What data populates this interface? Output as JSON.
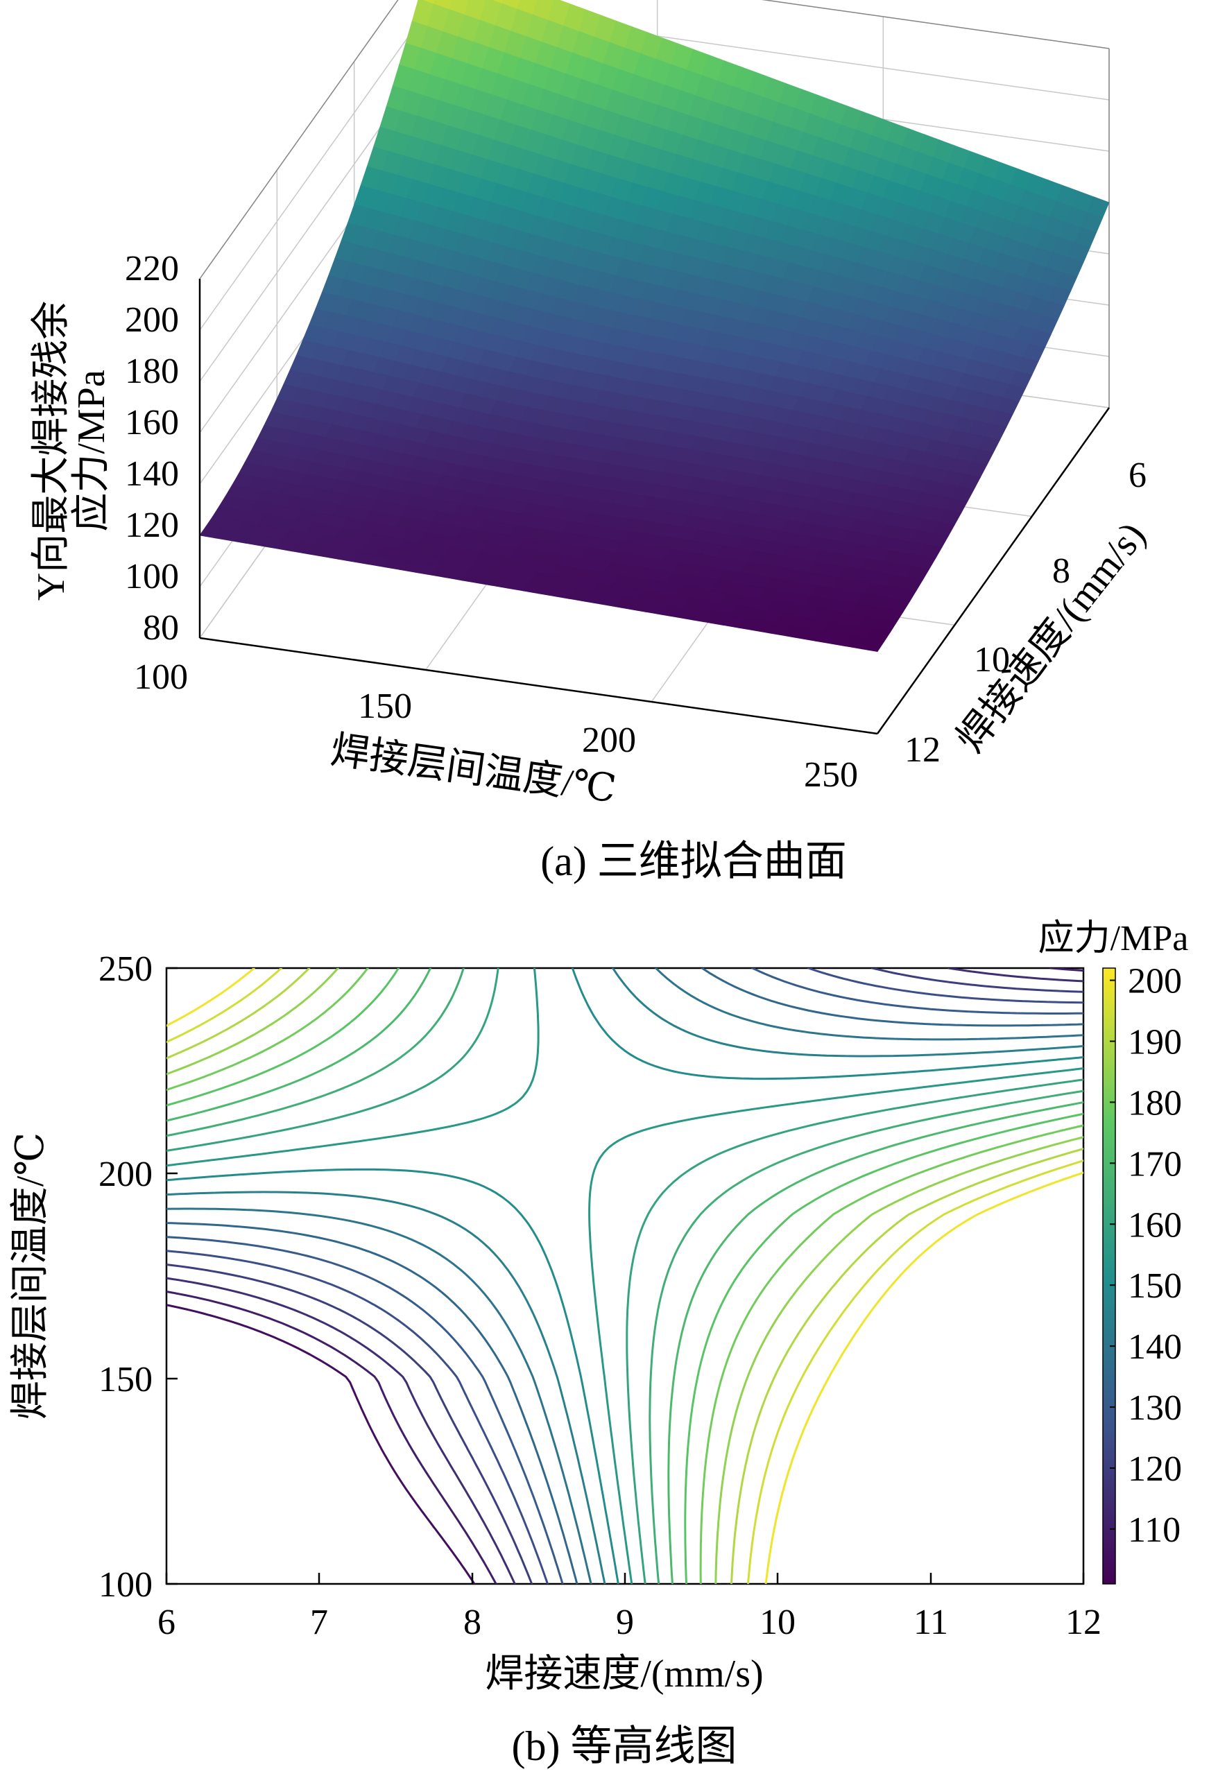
{
  "chart_data": [
    {
      "type": "surface",
      "caption": "(a)  三维拟合曲面",
      "xlabel": "焊接层间温度/℃",
      "ylabel": "焊接速度/(mm/s)",
      "zlabel_line1": "Y向最大焊接残余",
      "zlabel_line2": "应力/MPa",
      "x_ticks": [
        "100",
        "150",
        "200",
        "250"
      ],
      "y_ticks": [
        "6",
        "8",
        "10",
        "12"
      ],
      "z_ticks": [
        "80",
        "100",
        "120",
        "140",
        "160",
        "180",
        "200",
        "220"
      ],
      "xlim": [
        100,
        250
      ],
      "ylim": [
        6,
        12
      ],
      "zlim": [
        80,
        220
      ],
      "grid": true,
      "colormap": [
        "#440154",
        "#3b528b",
        "#21908d",
        "#5dc863",
        "#fde725"
      ],
      "corner_values": [
        {
          "temperature": 100,
          "speed": 12,
          "stress": 120
        },
        {
          "temperature": 250,
          "speed": 12,
          "stress": 112
        },
        {
          "temperature": 250,
          "speed": 6,
          "stress": 160
        },
        {
          "temperature": 100,
          "speed": 6,
          "stress": 220
        }
      ]
    },
    {
      "type": "contour",
      "caption": "(b)  等高线图",
      "xlabel": "焊接速度/(mm/s)",
      "ylabel": "焊接层间温度/℃",
      "x_ticks": [
        "6",
        "7",
        "8",
        "9",
        "10",
        "11",
        "12"
      ],
      "y_ticks": [
        "100",
        "150",
        "200",
        "250"
      ],
      "xlim": [
        6,
        12
      ],
      "ylim": [
        100,
        250
      ],
      "colorbar_label": "应力/MPa",
      "colorbar_ticks": [
        "110",
        "120",
        "130",
        "140",
        "150",
        "160",
        "170",
        "180",
        "190",
        "200"
      ],
      "colorbar_range": [
        101,
        202
      ],
      "contour_level_step": 5
    }
  ]
}
